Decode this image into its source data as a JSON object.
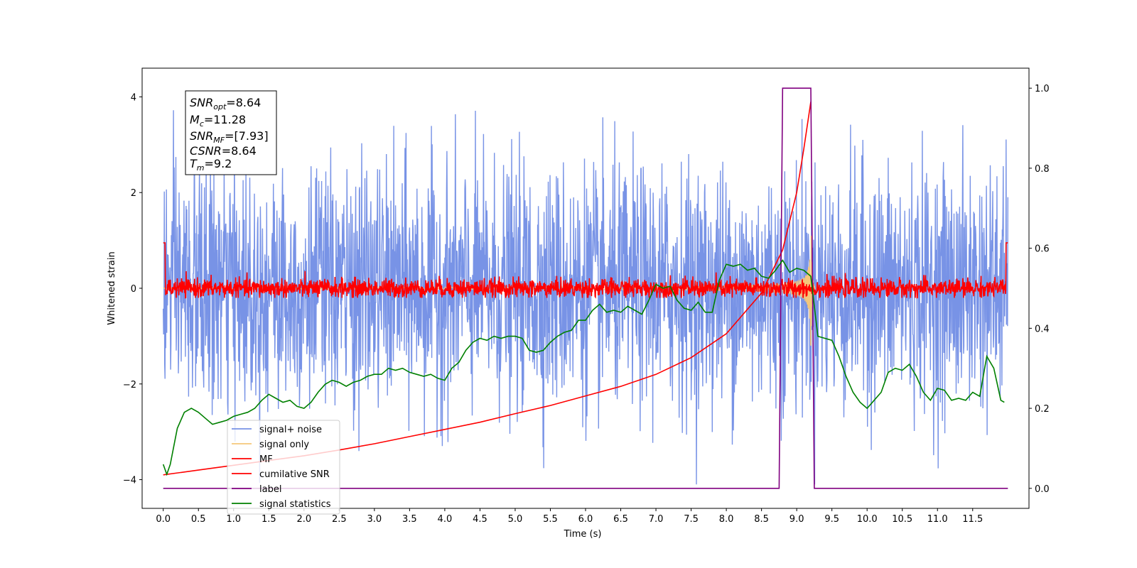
{
  "chart_data": {
    "type": "line",
    "xlabel": "Time (s)",
    "ylabel": "Whitened strain",
    "xlim": [
      -0.3,
      12.3
    ],
    "ylim": [
      -4.6,
      4.6
    ],
    "ylim_right": [
      -0.05,
      1.05
    ],
    "x_ticks": [
      "0.0",
      "0.5",
      "1.0",
      "1.5",
      "2.0",
      "2.5",
      "3.0",
      "3.5",
      "4.0",
      "4.5",
      "5.0",
      "5.5",
      "6.0",
      "6.5",
      "7.0",
      "7.5",
      "8.0",
      "8.5",
      "9.0",
      "9.5",
      "10.0",
      "10.5",
      "11.0",
      "11.5"
    ],
    "y_ticks": [
      "−4",
      "−2",
      "0",
      "2",
      "4"
    ],
    "y_ticks_right": [
      "0.0",
      "0.2",
      "0.4",
      "0.6",
      "0.8",
      "1.0"
    ],
    "grid": false,
    "legend_position": "lower-left",
    "info_box": {
      "snr_opt_label": "SNR",
      "snr_opt_sub": "opt",
      "snr_opt_value": "=8.64",
      "mc_label": "M",
      "mc_sub": "c",
      "mc_value": "=11.28",
      "snr_mf_label": "SNR",
      "snr_mf_sub": "MF",
      "snr_mf_value": "=[7.93]",
      "csnr_label": "CSNR",
      "csnr_value": "=8.64",
      "tm_label": "T",
      "tm_sub": "m",
      "tm_value": "=9.2"
    },
    "series": [
      {
        "name": "signal+ noise",
        "color": "#7893e6",
        "axis": "left",
        "style": "noise band, amplitude approx 1.6 sigma, peaks to about ±4",
        "x_range": [
          0,
          12
        ],
        "mean": 0,
        "envelope": 3.3
      },
      {
        "name": "signal only",
        "color": "#f5c77a",
        "axis": "left",
        "style": "chirp growing to about ±1.6 at merger 9.2 s",
        "x_range": [
          0,
          9.2
        ],
        "peak_amplitude": 1.6
      },
      {
        "name": "MF",
        "color": "#ff0000",
        "axis": "left",
        "style": "narrow band about ±0.3 around 0",
        "x_range": [
          0,
          12
        ],
        "envelope": 0.3
      },
      {
        "name": "cumilative SNR",
        "color": "#ff0000",
        "axis": "left",
        "x": [
          0,
          0.5,
          1.0,
          1.5,
          2.0,
          2.5,
          3.0,
          3.5,
          4.0,
          4.5,
          5.0,
          5.5,
          6.0,
          6.5,
          7.0,
          7.5,
          8.0,
          8.5,
          8.8,
          9.0,
          9.1,
          9.2
        ],
        "values": [
          -3.9,
          -3.8,
          -3.7,
          -3.6,
          -3.5,
          -3.38,
          -3.25,
          -3.1,
          -2.95,
          -2.8,
          -2.62,
          -2.45,
          -2.25,
          -2.05,
          -1.8,
          -1.45,
          -0.95,
          -0.1,
          0.8,
          2.0,
          2.9,
          3.9
        ]
      },
      {
        "name": "label",
        "color": "#800080",
        "axis": "right",
        "x": [
          0,
          8.75,
          8.8,
          9.2,
          9.25,
          12
        ],
        "values": [
          0,
          0,
          1,
          1,
          0,
          0
        ]
      },
      {
        "name": "signal statistics",
        "color": "#008000",
        "axis": "right",
        "x": [
          0,
          0.05,
          0.1,
          0.2,
          0.3,
          0.4,
          0.5,
          0.6,
          0.7,
          0.8,
          0.9,
          1.0,
          1.1,
          1.2,
          1.3,
          1.4,
          1.5,
          1.6,
          1.7,
          1.8,
          1.9,
          2.0,
          2.1,
          2.2,
          2.3,
          2.4,
          2.5,
          2.6,
          2.7,
          2.8,
          2.9,
          3.0,
          3.1,
          3.2,
          3.3,
          3.4,
          3.5,
          3.6,
          3.7,
          3.8,
          3.9,
          4.0,
          4.1,
          4.2,
          4.3,
          4.4,
          4.5,
          4.6,
          4.7,
          4.8,
          4.9,
          5.0,
          5.1,
          5.2,
          5.3,
          5.4,
          5.5,
          5.6,
          5.7,
          5.8,
          5.9,
          6.0,
          6.1,
          6.2,
          6.3,
          6.4,
          6.5,
          6.6,
          6.7,
          6.8,
          6.9,
          7.0,
          7.1,
          7.2,
          7.3,
          7.4,
          7.5,
          7.6,
          7.7,
          7.8,
          7.9,
          8.0,
          8.1,
          8.2,
          8.3,
          8.4,
          8.5,
          8.6,
          8.7,
          8.8,
          8.9,
          9.0,
          9.1,
          9.2,
          9.3,
          9.4,
          9.5,
          9.6,
          9.7,
          9.8,
          9.9,
          10.0,
          10.1,
          10.2,
          10.3,
          10.4,
          10.5,
          10.6,
          10.7,
          10.8,
          10.9,
          11.0,
          11.1,
          11.2,
          11.3,
          11.4,
          11.5,
          11.6,
          11.7,
          11.8,
          11.9,
          11.95
        ],
        "values": [
          0.06,
          0.035,
          0.06,
          0.15,
          0.19,
          0.2,
          0.19,
          0.175,
          0.16,
          0.165,
          0.17,
          0.18,
          0.185,
          0.19,
          0.2,
          0.22,
          0.235,
          0.225,
          0.215,
          0.22,
          0.205,
          0.2,
          0.215,
          0.24,
          0.26,
          0.27,
          0.265,
          0.255,
          0.265,
          0.27,
          0.28,
          0.285,
          0.285,
          0.3,
          0.295,
          0.3,
          0.29,
          0.285,
          0.28,
          0.285,
          0.275,
          0.27,
          0.3,
          0.315,
          0.345,
          0.365,
          0.375,
          0.37,
          0.38,
          0.375,
          0.38,
          0.38,
          0.375,
          0.345,
          0.34,
          0.345,
          0.365,
          0.38,
          0.39,
          0.395,
          0.42,
          0.42,
          0.445,
          0.46,
          0.44,
          0.445,
          0.44,
          0.455,
          0.445,
          0.435,
          0.47,
          0.51,
          0.5,
          0.505,
          0.47,
          0.45,
          0.445,
          0.465,
          0.44,
          0.44,
          0.52,
          0.56,
          0.555,
          0.56,
          0.545,
          0.55,
          0.53,
          0.525,
          0.545,
          0.57,
          0.54,
          0.55,
          0.545,
          0.53,
          0.38,
          0.375,
          0.37,
          0.33,
          0.28,
          0.24,
          0.215,
          0.2,
          0.22,
          0.24,
          0.29,
          0.3,
          0.295,
          0.31,
          0.28,
          0.24,
          0.22,
          0.25,
          0.245,
          0.22,
          0.225,
          0.22,
          0.24,
          0.23,
          0.33,
          0.3,
          0.22,
          0.215
        ]
      }
    ]
  }
}
